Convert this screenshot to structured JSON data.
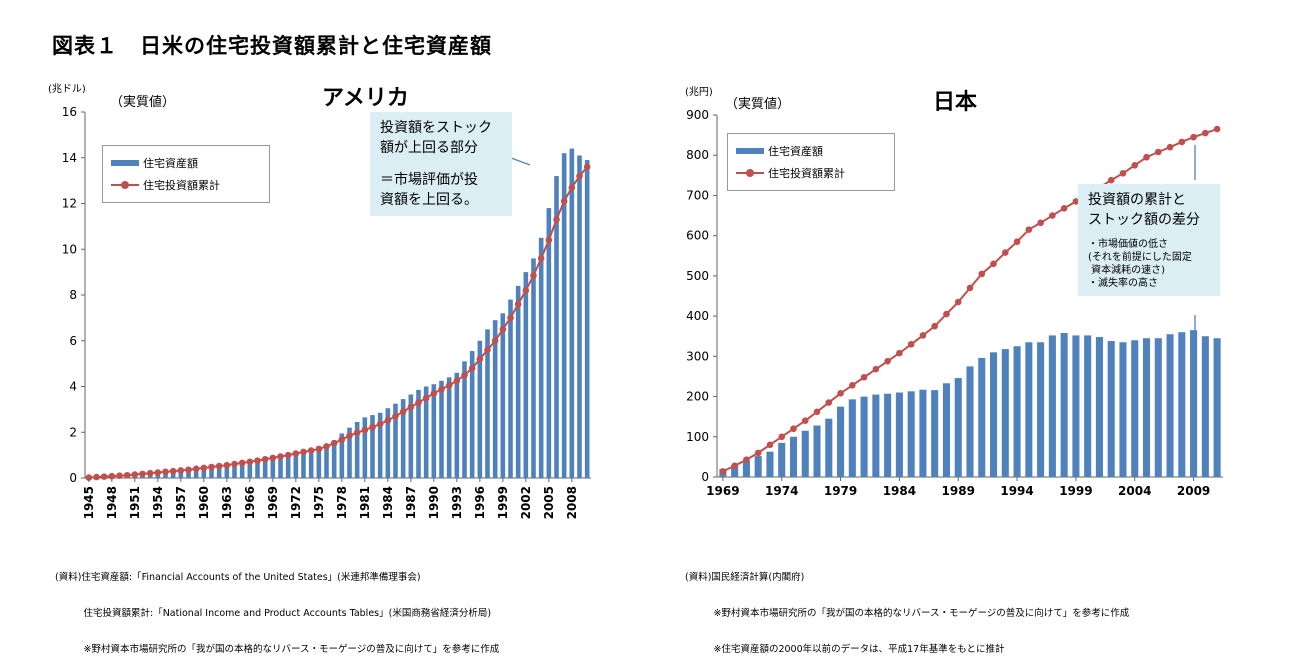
{
  "title": "図表１　日米の住宅投資額累計と住宅資産額",
  "charts": {
    "us": {
      "unit": "(兆ドル)",
      "real_label": "（実質値）",
      "title": "アメリカ",
      "legend": [
        "住宅資産額",
        "住宅投資額累計"
      ],
      "callout1": "投資額をストック\n額が上回る部分",
      "callout2": "＝市場評価が投\n資額を上回る。",
      "source_lines": [
        "(資料)住宅資産額:「Financial Accounts of the United States」(米連邦準備理事会)",
        "　　　住宅投資額累計:「National Income and Product Accounts Tables」(米国商務省経済分析局)",
        "　　　※野村資本市場研究所の「我が国の本格的なリバース・モーゲージの普及に向けて」を参考に作成"
      ]
    },
    "jp": {
      "unit": "(兆円)",
      "real_label": "（実質値）",
      "title": "日本",
      "legend": [
        "住宅資産額",
        "住宅投資額累計"
      ],
      "callout_title": "投資額の累計と\nストック額の差分",
      "callout_small": "・市場価値の低さ\n(それを前提にした固定\n 資本減耗の速さ)\n・滅失率の高さ",
      "source_lines": [
        "(資料)国民経済計算(内閣府)",
        "　　　※野村資本市場研究所の「我が国の本格的なリバース・モーゲージの普及に向けて」を参考に作成",
        "　　　※住宅資産額の2000年以前のデータは、平成17年基準をもとに推計"
      ]
    }
  },
  "chart_data": [
    {
      "type": "bar",
      "title": "アメリカ",
      "ylabel": "(兆ドル)",
      "ylim": [
        0,
        16
      ],
      "yticks": [
        0,
        2,
        4,
        6,
        8,
        10,
        12,
        14,
        16
      ],
      "x": [
        1945,
        1946,
        1947,
        1948,
        1949,
        1950,
        1951,
        1952,
        1953,
        1954,
        1955,
        1956,
        1957,
        1958,
        1959,
        1960,
        1961,
        1962,
        1963,
        1964,
        1965,
        1966,
        1967,
        1968,
        1969,
        1970,
        1971,
        1972,
        1973,
        1974,
        1975,
        1976,
        1977,
        1978,
        1979,
        1980,
        1981,
        1982,
        1983,
        1984,
        1985,
        1986,
        1987,
        1988,
        1989,
        1990,
        1991,
        1992,
        1993,
        1994,
        1995,
        1996,
        1997,
        1998,
        1999,
        2000,
        2001,
        2002,
        2003,
        2004,
        2005,
        2006,
        2007,
        2008,
        2009,
        2010
      ],
      "xticks": [
        1945,
        1948,
        1951,
        1954,
        1957,
        1960,
        1963,
        1966,
        1969,
        1972,
        1975,
        1978,
        1981,
        1984,
        1987,
        1990,
        1993,
        1996,
        1999,
        2002,
        2005,
        2008
      ],
      "legend_position": "top-left",
      "series": [
        {
          "name": "住宅資産額",
          "kind": "bar",
          "color": "#4f81bd",
          "values": [
            0.06,
            0.07,
            0.08,
            0.1,
            0.12,
            0.14,
            0.16,
            0.18,
            0.2,
            0.22,
            0.25,
            0.27,
            0.3,
            0.32,
            0.35,
            0.37,
            0.4,
            0.43,
            0.47,
            0.52,
            0.56,
            0.61,
            0.66,
            0.72,
            0.77,
            0.82,
            0.88,
            0.95,
            1.02,
            1.08,
            1.2,
            1.4,
            1.65,
            1.95,
            2.2,
            2.45,
            2.65,
            2.75,
            2.85,
            3.05,
            3.25,
            3.45,
            3.65,
            3.85,
            4.0,
            4.1,
            4.25,
            4.4,
            4.6,
            5.1,
            5.55,
            6.0,
            6.5,
            6.9,
            7.2,
            7.8,
            8.4,
            9.0,
            9.6,
            10.5,
            11.8,
            13.2,
            14.2,
            14.4,
            14.1,
            13.9
          ]
        },
        {
          "name": "住宅投資額累計",
          "kind": "line",
          "color": "#c0504d",
          "values": [
            0.02,
            0.04,
            0.06,
            0.08,
            0.1,
            0.12,
            0.15,
            0.18,
            0.21,
            0.24,
            0.27,
            0.3,
            0.33,
            0.36,
            0.4,
            0.44,
            0.48,
            0.52,
            0.56,
            0.61,
            0.66,
            0.71,
            0.76,
            0.82,
            0.88,
            0.94,
            1.0,
            1.07,
            1.14,
            1.2,
            1.27,
            1.38,
            1.52,
            1.68,
            1.85,
            1.98,
            2.1,
            2.22,
            2.36,
            2.52,
            2.7,
            2.9,
            3.1,
            3.3,
            3.5,
            3.7,
            3.88,
            4.05,
            4.25,
            4.5,
            4.8,
            5.2,
            5.6,
            6.0,
            6.5,
            7.0,
            7.6,
            8.2,
            8.85,
            9.6,
            10.4,
            11.3,
            12.1,
            12.7,
            13.2,
            13.6
          ]
        }
      ]
    },
    {
      "type": "bar",
      "title": "日本",
      "ylabel": "(兆円)",
      "ylim": [
        0,
        900
      ],
      "yticks": [
        0,
        100,
        200,
        300,
        400,
        500,
        600,
        700,
        800,
        900
      ],
      "x": [
        1969,
        1970,
        1971,
        1972,
        1973,
        1974,
        1975,
        1976,
        1977,
        1978,
        1979,
        1980,
        1981,
        1982,
        1983,
        1984,
        1985,
        1986,
        1987,
        1988,
        1989,
        1990,
        1991,
        1992,
        1993,
        1994,
        1995,
        1996,
        1997,
        1998,
        1999,
        2000,
        2001,
        2002,
        2003,
        2004,
        2005,
        2006,
        2007,
        2008,
        2009,
        2010,
        2011
      ],
      "xticks": [
        1969,
        1974,
        1979,
        1984,
        1989,
        1994,
        1999,
        2004,
        2009
      ],
      "legend_position": "top-left",
      "series": [
        {
          "name": "住宅資産額",
          "kind": "bar",
          "color": "#4f81bd",
          "values": [
            20,
            30,
            40,
            52,
            63,
            85,
            100,
            115,
            128,
            145,
            175,
            193,
            200,
            205,
            207,
            210,
            213,
            217,
            216,
            233,
            246,
            275,
            296,
            310,
            318,
            325,
            335,
            335,
            352,
            358,
            352,
            352,
            348,
            338,
            335,
            340,
            345,
            345,
            355,
            360,
            365,
            350,
            345
          ]
        },
        {
          "name": "住宅投資額累計",
          "kind": "line",
          "color": "#c0504d",
          "values": [
            14,
            28,
            43,
            60,
            80,
            100,
            120,
            140,
            162,
            185,
            208,
            228,
            248,
            268,
            288,
            308,
            330,
            352,
            375,
            405,
            435,
            470,
            505,
            530,
            558,
            585,
            615,
            632,
            650,
            668,
            685,
            702,
            720,
            738,
            755,
            775,
            795,
            808,
            820,
            833,
            845,
            855,
            865
          ]
        }
      ]
    }
  ]
}
